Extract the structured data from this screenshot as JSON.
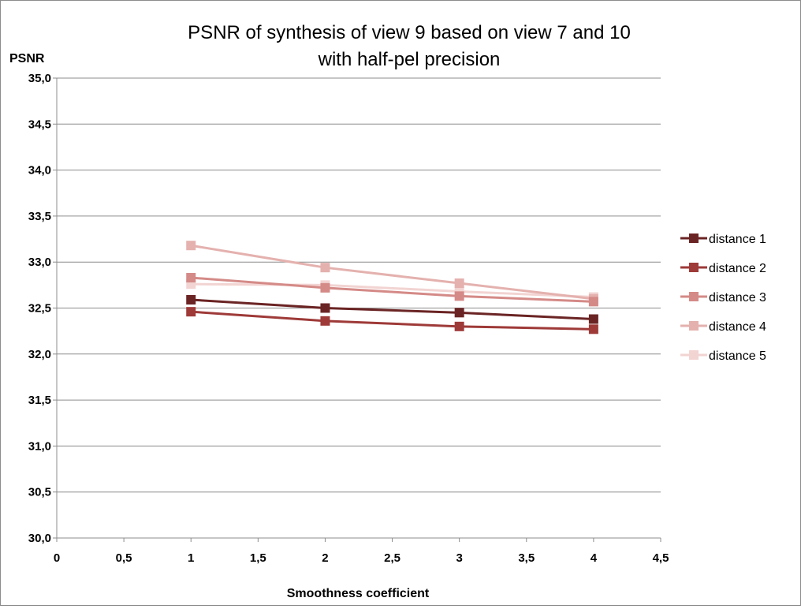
{
  "chart_data": {
    "type": "line",
    "title_lines": [
      "PSNR of synthesis of view 9 based on view 7 and 10",
      "with half-pel precision"
    ],
    "xlabel": "Smoothness coefficient",
    "ylabel": "PSNR",
    "xlim": [
      0,
      4.5
    ],
    "ylim": [
      30.0,
      35.0
    ],
    "x_ticks": [
      "0",
      "0,5",
      "1",
      "1,5",
      "2",
      "2,5",
      "3",
      "3,5",
      "4",
      "4,5"
    ],
    "y_ticks": [
      "30,0",
      "30,5",
      "31,0",
      "31,5",
      "32,0",
      "32,5",
      "33,0",
      "33,5",
      "34,0",
      "34,5",
      "35,0"
    ],
    "grid": "horizontal",
    "legend_position": "right",
    "x": [
      1,
      2,
      3,
      4
    ],
    "series": [
      {
        "name": "distance 1",
        "color": "#6b2424",
        "values": [
          32.59,
          32.5,
          32.45,
          32.38
        ]
      },
      {
        "name": "distance 2",
        "color": "#9e3a38",
        "values": [
          32.46,
          32.36,
          32.3,
          32.27
        ]
      },
      {
        "name": "distance 3",
        "color": "#d48a87",
        "values": [
          32.83,
          32.72,
          32.63,
          32.57
        ]
      },
      {
        "name": "distance 4",
        "color": "#e4b1ae",
        "values": [
          33.18,
          32.94,
          32.77,
          32.6
        ]
      },
      {
        "name": "distance 5",
        "color": "#f2d4d2",
        "values": [
          32.76,
          32.75,
          32.68,
          32.62
        ]
      }
    ]
  }
}
